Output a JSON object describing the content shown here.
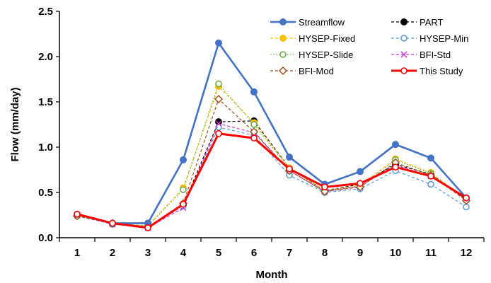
{
  "chart_data": {
    "type": "line",
    "xlabel": "Month",
    "ylabel": "Flow (mm/day)",
    "categories": [
      "1",
      "2",
      "3",
      "4",
      "5",
      "6",
      "7",
      "8",
      "9",
      "10",
      "11",
      "12"
    ],
    "ylim": [
      0,
      2.5
    ],
    "yticks": [
      "0.0",
      "0.5",
      "1.0",
      "1.5",
      "2.0",
      "2.5"
    ],
    "grid": false,
    "legend_position": "top-right",
    "series": [
      {
        "name": "Streamflow",
        "color": "#4472C4",
        "style": "solid",
        "marker": "filled-circle",
        "values": [
          0.26,
          0.16,
          0.16,
          0.86,
          2.15,
          1.61,
          0.89,
          0.59,
          0.73,
          1.03,
          0.88,
          0.44
        ]
      },
      {
        "name": "PART",
        "color": "#000000",
        "style": "dashed",
        "marker": "filled-circle",
        "values": [
          0.25,
          0.15,
          0.12,
          0.36,
          1.28,
          1.29,
          0.77,
          0.52,
          0.59,
          0.81,
          0.7,
          0.42
        ]
      },
      {
        "name": "HYSEP-Fixed",
        "color": "#FFC000",
        "style": "dashed",
        "marker": "filled-circle",
        "values": [
          0.24,
          0.16,
          0.13,
          0.55,
          1.67,
          1.27,
          0.77,
          0.52,
          0.58,
          0.87,
          0.72,
          0.42
        ]
      },
      {
        "name": "HYSEP-Min",
        "color": "#5B9BD5",
        "style": "dashed",
        "marker": "open-circle",
        "values": [
          0.24,
          0.15,
          0.12,
          0.35,
          1.22,
          1.13,
          0.69,
          0.5,
          0.54,
          0.74,
          0.59,
          0.34
        ]
      },
      {
        "name": "HYSEP-Slide",
        "color": "#70AD47",
        "style": "dotted",
        "marker": "open-circle",
        "values": [
          0.24,
          0.16,
          0.13,
          0.53,
          1.7,
          1.25,
          0.76,
          0.52,
          0.57,
          0.86,
          0.71,
          0.42
        ]
      },
      {
        "name": "BFI-Std",
        "color": "#CC33CC",
        "style": "dashed",
        "marker": "x",
        "values": [
          0.25,
          0.15,
          0.11,
          0.33,
          1.26,
          1.16,
          0.74,
          0.51,
          0.57,
          0.8,
          0.68,
          0.42
        ]
      },
      {
        "name": "BFI-Mod",
        "color": "#9C4A14",
        "style": "dashed",
        "marker": "open-diamond",
        "values": [
          0.24,
          0.16,
          0.12,
          0.38,
          1.53,
          1.17,
          0.74,
          0.51,
          0.56,
          0.83,
          0.69,
          0.41
        ]
      },
      {
        "name": "This Study",
        "color": "#FF0000",
        "style": "solid-thick",
        "marker": "open-circle",
        "values": [
          0.26,
          0.16,
          0.11,
          0.37,
          1.15,
          1.1,
          0.76,
          0.56,
          0.6,
          0.78,
          0.68,
          0.44
        ]
      }
    ]
  }
}
